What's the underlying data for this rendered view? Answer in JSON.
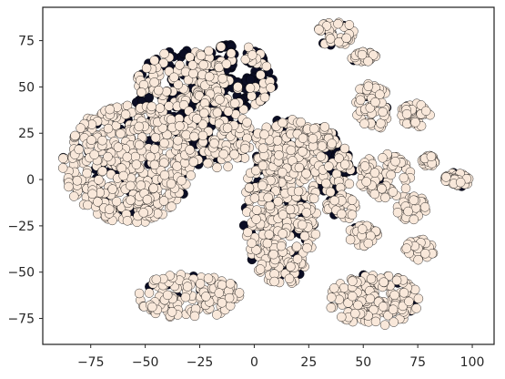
{
  "chart_data": {
    "type": "scatter",
    "title": "",
    "xlabel": "",
    "ylabel": "",
    "xlim": [
      -97,
      110
    ],
    "ylim": [
      -89,
      93
    ],
    "grid": false,
    "legend": "none",
    "x_ticks": [
      -75,
      -50,
      -25,
      0,
      25,
      50,
      75,
      100
    ],
    "y_ticks": [
      -75,
      -50,
      -25,
      0,
      25,
      50,
      75
    ],
    "x_tick_labels": [
      "−75",
      "−50",
      "−25",
      "0",
      "25",
      "50",
      "75",
      "100"
    ],
    "y_tick_labels": [
      "−75",
      "−50",
      "−25",
      "0",
      "25",
      "50",
      "75"
    ],
    "colors": {
      "series_dark": "#0b0d24",
      "series_light": "#f9e8da",
      "marker_edge": "#000000",
      "axes": "#262626",
      "background": "#ffffff"
    },
    "clusters": [
      {
        "cx": -58,
        "cy": 8,
        "rx": 30,
        "ry": 32,
        "light_share": 0.9
      },
      {
        "cx": -33,
        "cy": 48,
        "rx": 22,
        "ry": 22,
        "light_share": 0.55
      },
      {
        "cx": -10,
        "cy": 55,
        "rx": 20,
        "ry": 18,
        "light_share": 0.35
      },
      {
        "cx": -18,
        "cy": 22,
        "rx": 18,
        "ry": 16,
        "light_share": 0.75
      },
      {
        "cx": 12,
        "cy": -18,
        "rx": 17,
        "ry": 40,
        "light_share": 0.85
      },
      {
        "cx": 14,
        "cy": 18,
        "rx": 14,
        "ry": 16,
        "light_share": 0.85
      },
      {
        "cx": 36,
        "cy": 6,
        "rx": 10,
        "ry": 14,
        "light_share": 0.7
      },
      {
        "cx": -30,
        "cy": -63,
        "rx": 24,
        "ry": 12,
        "light_share": 0.92
      },
      {
        "cx": 55,
        "cy": -65,
        "rx": 21,
        "ry": 14,
        "light_share": 0.96
      },
      {
        "cx": 37,
        "cy": 79,
        "rx": 9,
        "ry": 7,
        "light_share": 0.9
      },
      {
        "cx": 50,
        "cy": 66,
        "rx": 6,
        "ry": 3,
        "light_share": 0.9
      },
      {
        "cx": 54,
        "cy": 40,
        "rx": 8,
        "ry": 14,
        "light_share": 0.9
      },
      {
        "cx": 76,
        "cy": -38,
        "rx": 7,
        "ry": 6,
        "light_share": 0.95
      },
      {
        "cx": 72,
        "cy": -15,
        "rx": 7,
        "ry": 7,
        "light_share": 0.95
      },
      {
        "cx": 75,
        "cy": 35,
        "rx": 8,
        "ry": 7,
        "light_share": 0.95
      },
      {
        "cx": 93,
        "cy": 0,
        "rx": 6,
        "ry": 4,
        "light_share": 0.95
      },
      {
        "cx": 80,
        "cy": 10,
        "rx": 3,
        "ry": 3,
        "light_share": 0.95
      },
      {
        "cx": 50,
        "cy": -30,
        "rx": 7,
        "ry": 6,
        "light_share": 0.9
      },
      {
        "cx": 60,
        "cy": 2,
        "rx": 12,
        "ry": 12,
        "light_share": 0.95
      },
      {
        "cx": 40,
        "cy": -15,
        "rx": 7,
        "ry": 7,
        "light_share": 0.9
      },
      {
        "cx": 30,
        "cy": 23,
        "rx": 8,
        "ry": 6,
        "light_share": 0.85
      }
    ]
  }
}
